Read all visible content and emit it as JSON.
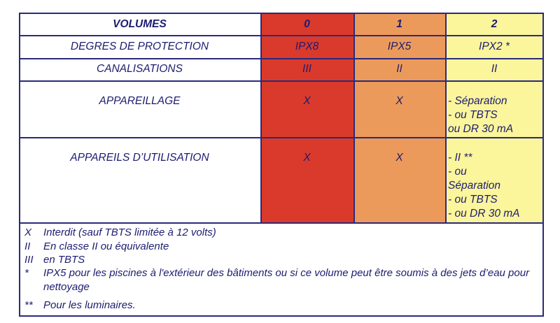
{
  "table": {
    "header": [
      "VOLUMES",
      "0",
      "1",
      "2"
    ],
    "rows": [
      [
        "DEGRES DE PROTECTION",
        "IPX8",
        "IPX5",
        "IPX2 *"
      ],
      [
        "CANALISATIONS",
        "III",
        "II",
        "II"
      ],
      [
        "APPAREILLAGE",
        "X",
        "X",
        [
          "- Séparation",
          "- ou TBTS",
          "ou DR 30 mA"
        ]
      ],
      [
        "APPAREILS D’UTILISATION",
        "X",
        "X",
        [
          "- II **",
          "- ou",
          "Séparation",
          "- ou TBTS",
          "- ou DR 30 mA"
        ]
      ]
    ]
  },
  "legend": [
    {
      "symbol": "X",
      "text": "Interdit (sauf TBTS limitée à 12 volts)"
    },
    {
      "symbol": "II",
      "text": "En classe II ou équivalente"
    },
    {
      "symbol": "III",
      "text": "en TBTS"
    },
    {
      "symbol": "*",
      "text": "IPX5 pour les piscines à l'extérieur des bâtiments ou si ce volume peut être soumis à des jets d’eau pour nettoyage"
    },
    {
      "symbol": "**",
      "text": "Pour les luminaires."
    }
  ]
}
